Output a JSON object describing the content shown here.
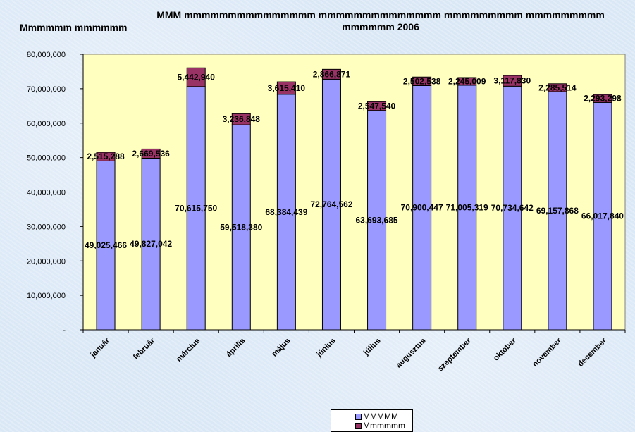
{
  "title": "MMM mmmmmmmmmmmmmmm mmmmmmmmmmmmmm mmmmmmmmm mmmmmmmmm mmmmmm 2006",
  "ylabel": "Mmmmmm mmmmmm",
  "chart_data": {
    "type": "bar",
    "stacked": true,
    "categories": [
      "január",
      "február",
      "március",
      "április",
      "május",
      "június",
      "július",
      "augusztus",
      "szeptember",
      "október",
      "november",
      "december"
    ],
    "series": [
      {
        "name": "MMMMM",
        "color": "#9999ff",
        "values": [
          49025466,
          49827042,
          70615750,
          59518380,
          68384439,
          72764562,
          63693685,
          70900447,
          71005319,
          70734642,
          69157868,
          66017840
        ],
        "labels": [
          "49,025,466",
          "49,827,042",
          "70,615,750",
          "59,518,380",
          "68,384,439",
          "72,764,562",
          "63,693,685",
          "70,900,447",
          "71,005,319",
          "70,734,642",
          "69,157,868",
          "66,017,840"
        ]
      },
      {
        "name": "Mmmmmm",
        "color": "#993366",
        "values": [
          2515288,
          2669536,
          5442940,
          3236848,
          3615410,
          2866871,
          2547540,
          2502538,
          2245009,
          3117830,
          2285514,
          2293298
        ],
        "labels": [
          "2,515,288",
          "2,669,536",
          "5,442,940",
          "3,236,848",
          "3,615,410",
          "2,866,871",
          "2,547,540",
          "2,502,538",
          "2,245,009",
          "3,117,830",
          "2,285,514",
          "2,293,298"
        ]
      }
    ],
    "yticks": [
      "-",
      "10,000,000",
      "20,000,000",
      "30,000,000",
      "40,000,000",
      "50,000,000",
      "60,000,000",
      "70,000,000",
      "80,000,000"
    ],
    "ylim": [
      0,
      80000000
    ],
    "plot_background": "#ffffc0",
    "grid": false,
    "legend_position": "bottom"
  }
}
